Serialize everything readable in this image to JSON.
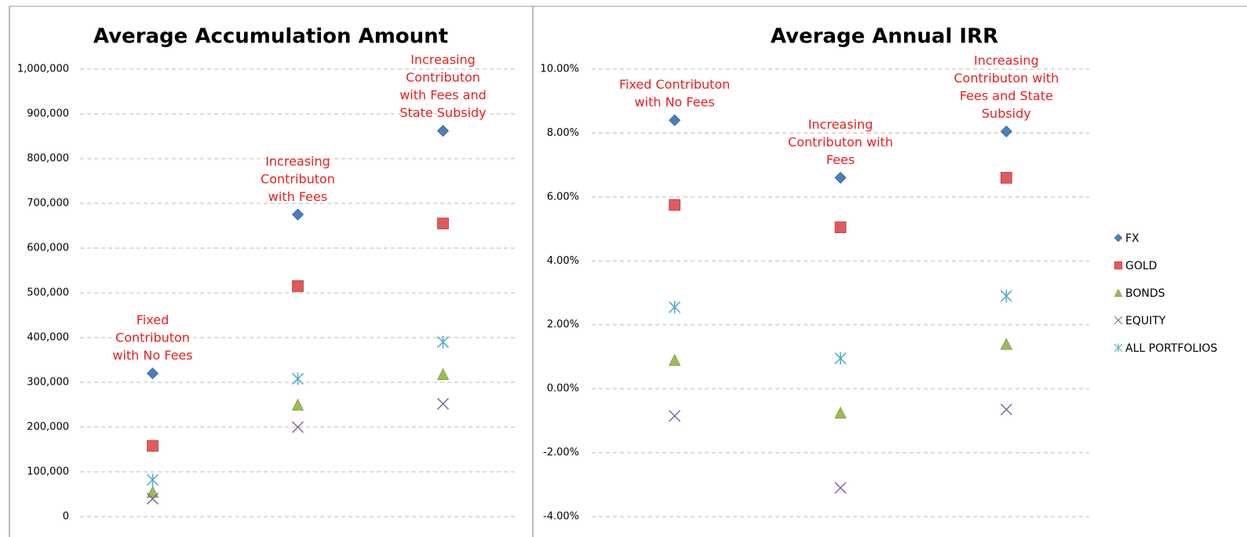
{
  "chart_data": [
    {
      "type": "scatter",
      "title": "Average Accumulation Amount",
      "categories": [
        null,
        null,
        null
      ],
      "annotations": [
        [
          "Fixed",
          "Contributon",
          "with No Fees"
        ],
        [
          "Increasing",
          "Contributon",
          "with Fees"
        ],
        [
          "Increasing",
          "Contributon",
          "with Fees and",
          "State Subsidy"
        ]
      ],
      "annotation_color": "#e8201e",
      "ylim": [
        0,
        1000000
      ],
      "yticks": [
        0,
        {
          "value": 100000,
          "label": "100,000"
        },
        {
          "value": 200000,
          "label": "200,000"
        },
        {
          "value": 300000,
          "label": "300,000"
        },
        {
          "value": 400000,
          "label": "400,000"
        },
        {
          "value": 500000,
          "label": "500,000"
        },
        {
          "value": 600000,
          "label": "600,000"
        },
        {
          "value": 700000,
          "label": "700,000"
        },
        {
          "value": 800000,
          "label": "800,000"
        },
        {
          "value": 900000,
          "label": "900,000"
        },
        {
          "value": 1000000,
          "label": "1,000,000"
        }
      ],
      "grid": true,
      "series": [
        {
          "name": "FX",
          "color": "#4a7ebb",
          "marker": "diamond",
          "values": [
            320000,
            675000,
            862000
          ]
        },
        {
          "name": "GOLD",
          "color": "#e05a5a",
          "marker": "square",
          "values": [
            158000,
            515000,
            655000
          ]
        },
        {
          "name": "BONDS",
          "color": "#9bbb59",
          "marker": "triangle",
          "values": [
            55000,
            250000,
            318000
          ]
        },
        {
          "name": "EQUITY",
          "color": "#8064a2",
          "marker": "x",
          "values": [
            40000,
            200000,
            252000
          ]
        },
        {
          "name": "ALL PORTFOLIOS",
          "color": "#4bacc6",
          "marker": "asterisk",
          "values": [
            82000,
            308000,
            390000
          ]
        }
      ]
    },
    {
      "type": "scatter",
      "title": "Average Annual IRR",
      "categories": [
        null,
        null,
        null
      ],
      "annotations": [
        [
          "Fixed Contributon",
          "with No Fees"
        ],
        [
          "Increasing",
          "Contributon with",
          "Fees"
        ],
        [
          "Increasing",
          "Contributon with",
          "Fees and State",
          "Subsidy"
        ]
      ],
      "annotation_color": "#e8201e",
      "ylim": [
        -4,
        10
      ],
      "yticks": [
        {
          "value": -4,
          "label": "-4.00%"
        },
        {
          "value": -2,
          "label": "-2.00%"
        },
        {
          "value": 0,
          "label": "0.00%"
        },
        {
          "value": 2,
          "label": "2.00%"
        },
        {
          "value": 4,
          "label": "4.00%"
        },
        {
          "value": 6,
          "label": "6.00%"
        },
        {
          "value": 8,
          "label": "8.00%"
        },
        {
          "value": 10,
          "label": "10.00%"
        }
      ],
      "grid": true,
      "legend": "right",
      "series": [
        {
          "name": "FX",
          "color": "#4a7ebb",
          "marker": "diamond",
          "values": [
            8.4,
            6.6,
            8.05
          ]
        },
        {
          "name": "GOLD",
          "color": "#e05a5a",
          "marker": "square",
          "values": [
            5.75,
            5.05,
            6.6
          ]
        },
        {
          "name": "BONDS",
          "color": "#9bbb59",
          "marker": "triangle",
          "values": [
            0.9,
            -0.75,
            1.4
          ]
        },
        {
          "name": "EQUITY",
          "color": "#8064a2",
          "marker": "x",
          "values": [
            -0.85,
            -3.1,
            -0.65
          ]
        },
        {
          "name": "ALL PORTFOLIOS",
          "color": "#4bacc6",
          "marker": "asterisk",
          "values": [
            2.55,
            0.95,
            2.9
          ]
        }
      ]
    }
  ]
}
